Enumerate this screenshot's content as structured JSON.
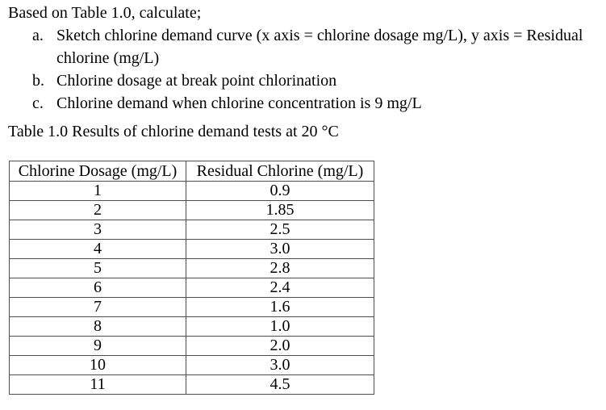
{
  "page": {
    "background_color": "#ffffff",
    "text_color": "#000000",
    "table_border_color": "#4d4d4d"
  },
  "intro": "Based on Table 1.0, calculate;",
  "questions": [
    {
      "marker": "a.",
      "lines": [
        "Sketch chlorine demand curve (x axis = chlorine dosage mg/L), y axis = Residual",
        "chlorine (mg/L)"
      ]
    },
    {
      "marker": "b.",
      "lines": [
        "Chlorine dosage at break point chlorination"
      ]
    },
    {
      "marker": "c.",
      "lines": [
        "Chlorine demand when chlorine concentration is 9 mg/L"
      ]
    }
  ],
  "table_caption": "Table 1.0 Results of chlorine demand tests at 20 °C",
  "table": {
    "headers": [
      "Chlorine Dosage (mg/L)",
      "Residual Chlorine (mg/L)"
    ],
    "rows": [
      [
        "1",
        "0.9"
      ],
      [
        "2",
        "1.85"
      ],
      [
        "3",
        "2.5"
      ],
      [
        "4",
        "3.0"
      ],
      [
        "5",
        "2.8"
      ],
      [
        "6",
        "2.4"
      ],
      [
        "7",
        "1.6"
      ],
      [
        "8",
        "1.0"
      ],
      [
        "9",
        "2.0"
      ],
      [
        "10",
        "3.0"
      ],
      [
        "11",
        "4.5"
      ]
    ]
  }
}
